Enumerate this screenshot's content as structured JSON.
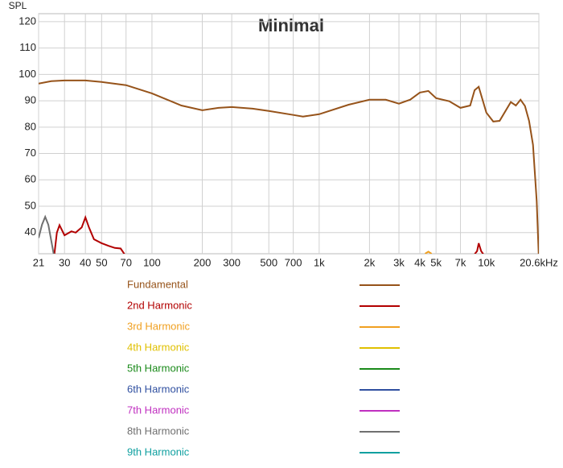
{
  "chart_data": {
    "type": "line",
    "title": "Minimal",
    "y_label": "SPL",
    "x_log": true,
    "grid": true,
    "xlim": [
      21,
      20600
    ],
    "ylim": [
      32,
      123
    ],
    "xticks": [
      21,
      30,
      40,
      50,
      70,
      100,
      200,
      300,
      500,
      700,
      {
        "value": 1000,
        "label": "1k"
      },
      {
        "value": 2000,
        "label": "2k"
      },
      {
        "value": 3000,
        "label": "3k"
      },
      {
        "value": 4000,
        "label": "4k"
      },
      {
        "value": 5000,
        "label": "5k"
      },
      {
        "value": 7000,
        "label": "7k"
      },
      {
        "value": 10000,
        "label": "10k"
      },
      {
        "value": 20600,
        "label": "20.6kHz"
      }
    ],
    "yticks": [
      40,
      50,
      60,
      70,
      80,
      90,
      100,
      110,
      120
    ],
    "series": [
      {
        "name": "Fundamental",
        "color": "#96531a",
        "x": [
          21,
          25,
          30,
          40,
          50,
          70,
          100,
          150,
          200,
          250,
          300,
          400,
          500,
          700,
          800,
          1000,
          1500,
          2000,
          2500,
          3000,
          3500,
          4000,
          4500,
          5000,
          6000,
          7000,
          8000,
          8500,
          9000,
          10000,
          11000,
          12000,
          14000,
          15000,
          16000,
          17000,
          18000,
          19000,
          20000,
          20600
        ],
        "values": [
          96.5,
          97.4,
          97.7,
          97.7,
          97.1,
          95.9,
          92.8,
          88.2,
          86.4,
          87.3,
          87.6,
          87.0,
          86.1,
          84.6,
          84.0,
          84.9,
          88.5,
          90.4,
          90.4,
          88.9,
          90.4,
          93.1,
          93.7,
          91.0,
          89.8,
          87.3,
          88.2,
          94.0,
          95.3,
          85.5,
          82.1,
          82.4,
          89.5,
          88.2,
          90.4,
          88.0,
          82.4,
          73.3,
          52,
          30
        ]
      },
      {
        "name": "2nd Harmonic",
        "color": "#b20000",
        "x": [
          26,
          27,
          28,
          30,
          33,
          35,
          38,
          40,
          42,
          45,
          50,
          55,
          60,
          65,
          70,
          8300,
          8800,
          9000,
          9300,
          9800
        ],
        "values": [
          31,
          40,
          42.8,
          39,
          40.5,
          40,
          42,
          45.8,
          42,
          37.5,
          36,
          35,
          34.2,
          34,
          31,
          31,
          33,
          36,
          33,
          31
        ]
      },
      {
        "name": "3rd Harmonic",
        "color": "#f0a020",
        "x": [
          4300,
          4500,
          4700
        ],
        "values": [
          32,
          32.8,
          32
        ]
      },
      {
        "name": "4th Harmonic",
        "color": "#e0c000",
        "x": [],
        "values": []
      },
      {
        "name": "5th Harmonic",
        "color": "#1a8a1a",
        "x": [],
        "values": []
      },
      {
        "name": "6th Harmonic",
        "color": "#3050a0",
        "x": [],
        "values": []
      },
      {
        "name": "7th Harmonic",
        "color": "#c030c0",
        "x": [],
        "values": []
      },
      {
        "name": "8th Harmonic",
        "color": "#707070",
        "x": [
          21,
          22,
          23,
          24,
          25,
          26
        ],
        "values": [
          38,
          43,
          46,
          43,
          37,
          31
        ]
      },
      {
        "name": "9th Harmonic",
        "color": "#10a0a0",
        "x": [],
        "values": []
      }
    ]
  }
}
